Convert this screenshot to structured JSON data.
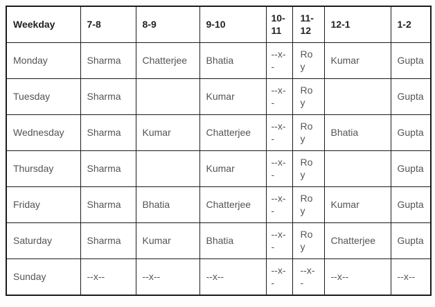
{
  "colors": {
    "table_border": "#1a1a1a",
    "header_text": "#222222",
    "body_text": "#545454",
    "background": "#ffffff"
  },
  "chart_data": {
    "type": "table",
    "columns": [
      "Weekday",
      "7-8",
      "8-9",
      "9-10",
      "10-11",
      "11-12",
      "12-1",
      "1-2"
    ],
    "rows": [
      [
        "Monday",
        "Sharma",
        "Chatterjee",
        "Bhatia",
        "--x--",
        "Roy",
        "Kumar",
        "Gupta"
      ],
      [
        "Tuesday",
        "Sharma",
        "",
        "Kumar",
        "--x--",
        "Roy",
        "",
        "Gupta"
      ],
      [
        "Wednesday",
        "Sharma",
        "Kumar",
        "Chatterjee",
        "--x--",
        "Roy",
        "Bhatia",
        "Gupta"
      ],
      [
        "Thursday",
        "Sharma",
        "",
        "Kumar",
        "--x--",
        "Roy",
        "",
        "Gupta"
      ],
      [
        "Friday",
        "Sharma",
        "Bhatia",
        "Chatterjee",
        "--x--",
        "Roy",
        "Kumar",
        "Gupta"
      ],
      [
        "Saturday",
        "Sharma",
        "Kumar",
        "Bhatia",
        "--x--",
        "Roy",
        "Chatterjee",
        "Gupta"
      ],
      [
        "Sunday",
        "--x--",
        "--x--",
        "--x--",
        "--x--",
        "--x--",
        "--x--",
        "--x--"
      ]
    ]
  }
}
